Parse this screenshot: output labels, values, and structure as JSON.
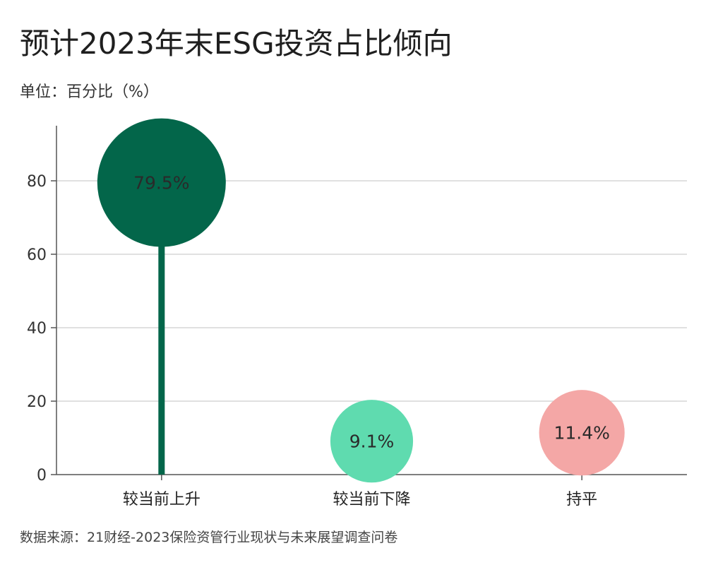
{
  "title": "预计2023年末ESG投资占比倾向",
  "unit_note": "单位：百分比（%）",
  "source": "数据来源：21财经-2023保险资管行业现状与未来展望调查问卷",
  "chart_data": {
    "type": "lollipop",
    "categories": [
      "较当前上升",
      "较当前下降",
      "持平"
    ],
    "values": [
      79.5,
      9.1,
      11.4
    ],
    "data_labels": [
      "79.5%",
      "9.1%",
      "11.4%"
    ],
    "colors": [
      "#03664a",
      "#5fdbaf",
      "#f4a7a6"
    ],
    "ylim": [
      0,
      95
    ],
    "yticks": [
      0,
      20,
      40,
      60,
      80
    ],
    "grid": true
  }
}
